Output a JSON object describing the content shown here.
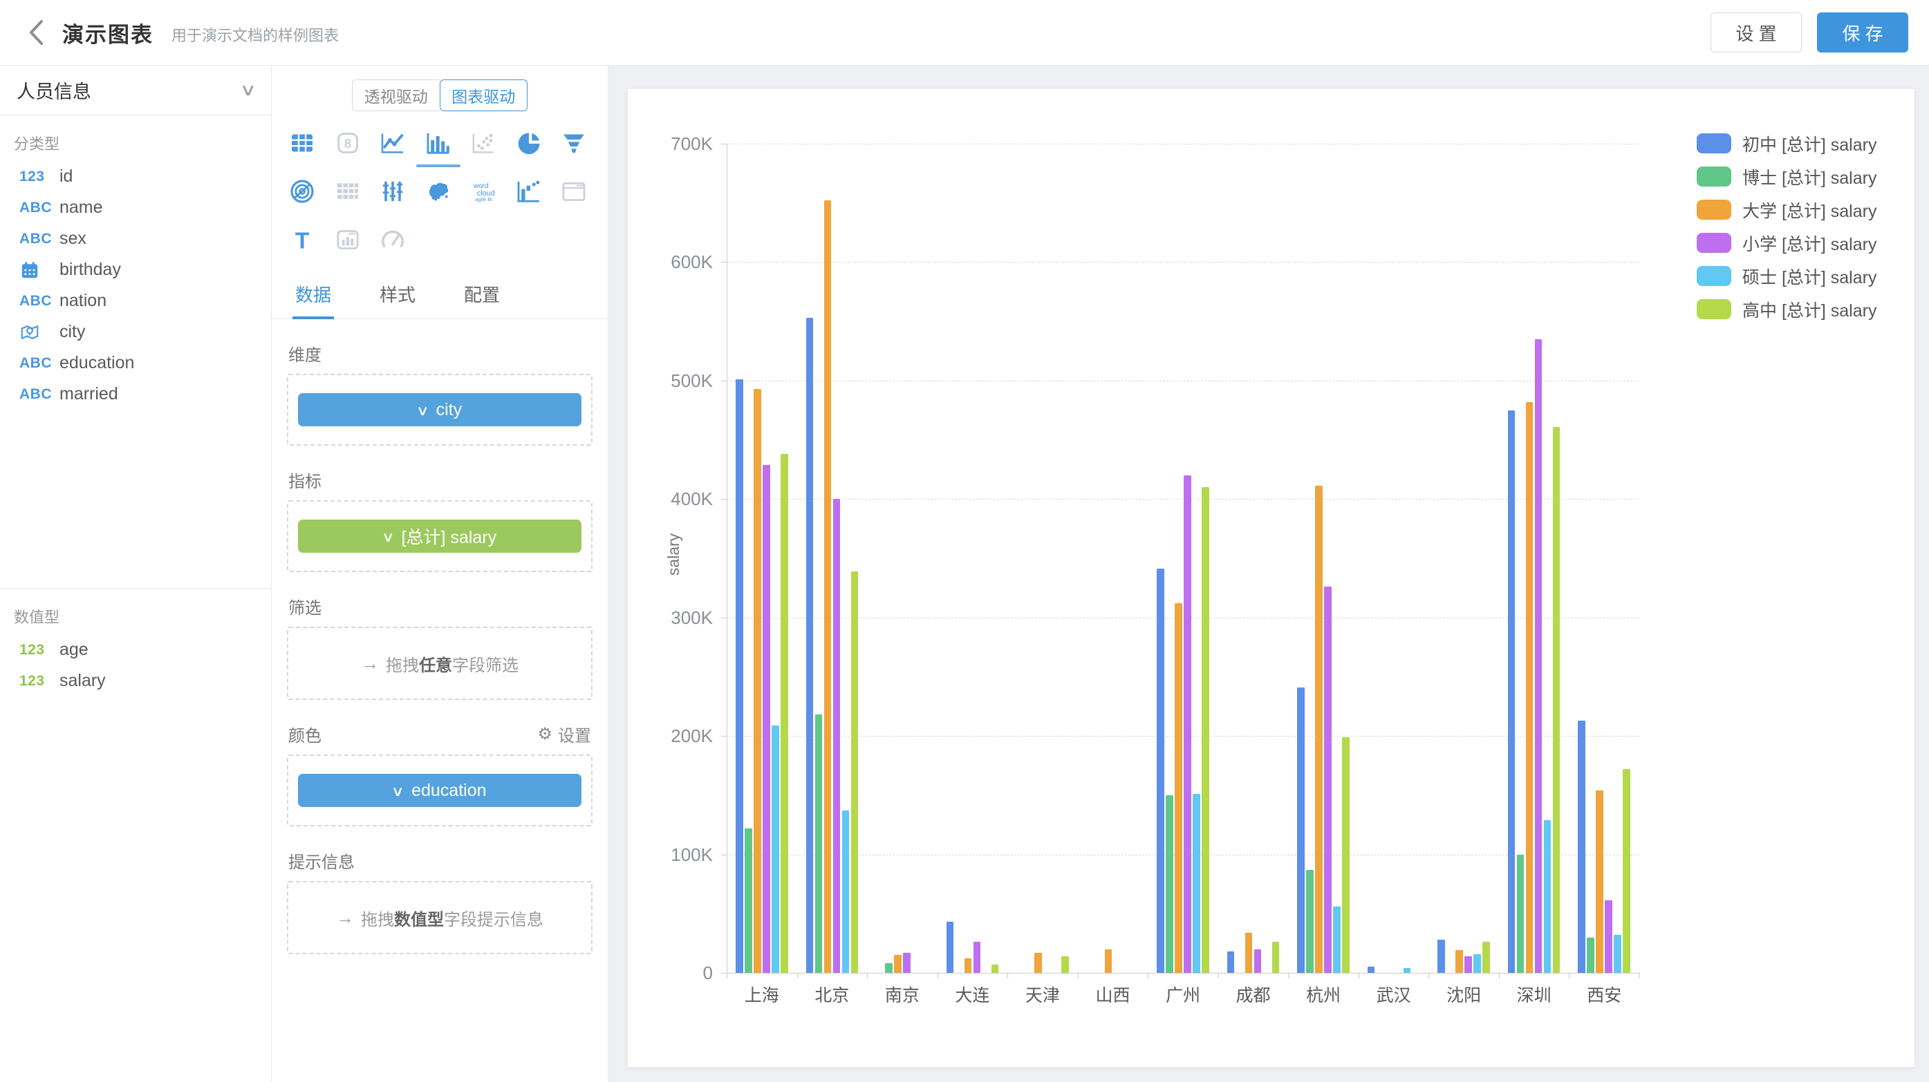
{
  "header": {
    "title": "演示图表",
    "subtitle": "用于演示文档的样例图表",
    "settings_label": "设 置",
    "save_label": "保 存"
  },
  "icons": {
    "chevron_down": "∨",
    "arrow_right": "→",
    "gear": "⚙"
  },
  "colors": {
    "accent": "#3e95dc",
    "dimension_chip": "#54a2de",
    "metric_chip": "#9cc95e",
    "color_chip": "#54a2de",
    "field_icon_categorical": "#4a97df",
    "field_icon_numeric": "#8fc34c"
  },
  "sidebar": {
    "dataset_name": "人员信息",
    "categorical_section_label": "分类型",
    "numeric_section_label": "数值型",
    "categorical_fields": [
      {
        "icon": "numeric-123",
        "name": "id"
      },
      {
        "icon": "text-abc",
        "name": "name"
      },
      {
        "icon": "text-abc",
        "name": "sex"
      },
      {
        "icon": "calendar",
        "name": "birthday"
      },
      {
        "icon": "text-abc",
        "name": "nation"
      },
      {
        "icon": "map-pin",
        "name": "city"
      },
      {
        "icon": "text-abc",
        "name": "education"
      },
      {
        "icon": "text-abc",
        "name": "married"
      }
    ],
    "numeric_fields": [
      {
        "icon": "numeric-123",
        "name": "age"
      },
      {
        "icon": "numeric-123",
        "name": "salary"
      }
    ]
  },
  "panel": {
    "mode_tabs": [
      {
        "label": "透视驱动",
        "active": false
      },
      {
        "label": "图表驱动",
        "active": true
      }
    ],
    "chart_types": [
      {
        "name": "table",
        "state": "active"
      },
      {
        "name": "kpi-card",
        "state": "disabled"
      },
      {
        "name": "line-chart",
        "state": "active"
      },
      {
        "name": "bar-chart",
        "state": "selected"
      },
      {
        "name": "scatter-plot",
        "state": "disabled"
      },
      {
        "name": "pie-chart",
        "state": "active"
      },
      {
        "name": "funnel-chart",
        "state": "active"
      },
      {
        "name": "radar-chart",
        "state": "active"
      },
      {
        "name": "crosstab",
        "state": "disabled"
      },
      {
        "name": "kline-chart",
        "state": "active"
      },
      {
        "name": "china-map",
        "state": "active"
      },
      {
        "name": "word-cloud",
        "state": "active"
      },
      {
        "name": "waterfall-chart",
        "state": "active"
      },
      {
        "name": "iframe-card",
        "state": "disabled"
      },
      {
        "name": "text-card",
        "state": "active"
      },
      {
        "name": "image-card",
        "state": "disabled"
      },
      {
        "name": "gauge-chart",
        "state": "disabled"
      }
    ],
    "tabs": [
      {
        "label": "数据",
        "active": true
      },
      {
        "label": "样式",
        "active": false
      },
      {
        "label": "配置",
        "active": false
      }
    ],
    "sections": {
      "dimension_label": "维度",
      "dimension_chip": "city",
      "metric_label": "指标",
      "metric_chip": "[总计] salary",
      "filter_label": "筛选",
      "filter_placeholder": {
        "prefix": "拖拽",
        "bold": "任意",
        "suffix": "字段筛选"
      },
      "color_label": "颜色",
      "color_settings_label": "设置",
      "color_chip": "education",
      "tooltip_label": "提示信息",
      "tooltip_placeholder": {
        "prefix": "拖拽",
        "bold": "数值型",
        "suffix": "字段提示信息"
      }
    }
  },
  "chart_data": {
    "type": "bar",
    "ylabel": "salary",
    "unit": "K",
    "ylim": [
      0,
      700
    ],
    "y_ticks": [
      0,
      100,
      200,
      300,
      400,
      500,
      600,
      700
    ],
    "grid": "dashed",
    "legend_position": "right",
    "categories": [
      "上海",
      "北京",
      "南京",
      "大连",
      "天津",
      "山西",
      "广州",
      "成都",
      "杭州",
      "武汉",
      "沈阳",
      "深圳",
      "西安"
    ],
    "series": [
      {
        "name": "初中 [总计] salary",
        "color": "#5b8fe8",
        "values": [
          501,
          553,
          0,
          43,
          0,
          0,
          341,
          18,
          241,
          5,
          28,
          475,
          213
        ]
      },
      {
        "name": "博士 [总计] salary",
        "color": "#5fc788",
        "values": [
          122,
          218,
          8,
          0,
          0,
          0,
          150,
          0,
          87,
          0,
          0,
          100,
          30
        ]
      },
      {
        "name": "大学 [总计] salary",
        "color": "#f0a43c",
        "values": [
          493,
          652,
          15,
          12,
          17,
          20,
          312,
          34,
          411,
          0,
          19,
          482,
          154
        ]
      },
      {
        "name": "小学 [总计] salary",
        "color": "#bd6ff0",
        "values": [
          429,
          400,
          17,
          26,
          0,
          0,
          420,
          20,
          326,
          0,
          14,
          535,
          61
        ]
      },
      {
        "name": "硕士 [总计] salary",
        "color": "#60c8f2",
        "values": [
          209,
          137,
          0,
          0,
          0,
          0,
          151,
          0,
          56,
          4,
          16,
          129,
          32
        ]
      },
      {
        "name": "高中 [总计] salary",
        "color": "#b4d94a",
        "values": [
          438,
          339,
          0,
          7,
          14,
          0,
          410,
          26,
          199,
          0,
          26,
          461,
          172
        ]
      }
    ]
  }
}
